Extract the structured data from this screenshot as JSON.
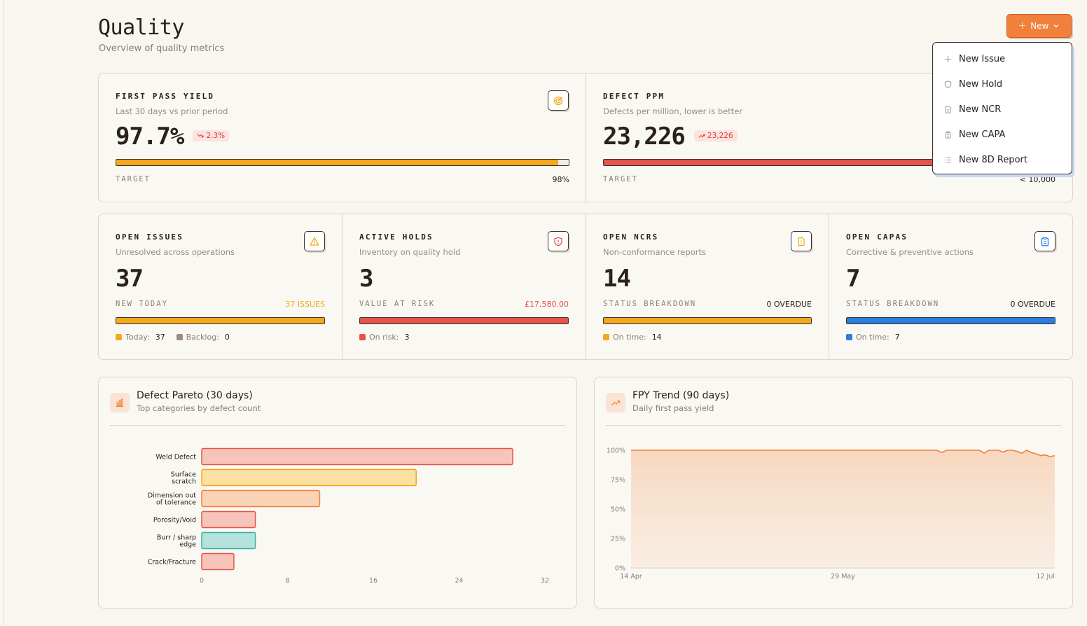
{
  "header": {
    "title": "Quality",
    "subtitle": "Overview of quality metrics",
    "new_button_label": "New"
  },
  "new_menu": {
    "items": [
      {
        "label": "New Issue",
        "icon": "plus-icon"
      },
      {
        "label": "New Hold",
        "icon": "shield-icon"
      },
      {
        "label": "New NCR",
        "icon": "file-icon"
      },
      {
        "label": "New CAPA",
        "icon": "clipboard-icon"
      },
      {
        "label": "New 8D Report",
        "icon": "list-icon"
      }
    ]
  },
  "fpy": {
    "label": "FIRST PASS YIELD",
    "description": "Last 30 days vs prior period",
    "value": "97.7%",
    "delta": "2.3%",
    "target_label": "TARGET",
    "target_value": "98%",
    "progress": 0.977,
    "color": "#f4a81d"
  },
  "ppm": {
    "label": "DEFECT PPM",
    "description": "Defects per million, lower is better",
    "value": "23,226",
    "delta": "23,226",
    "target_label": "TARGET",
    "target_value": "< 10,000",
    "progress": 1.0,
    "color": "#e5534b"
  },
  "issues": {
    "label": "OPEN ISSUES",
    "description": "Unresolved across operations",
    "value": "37",
    "sub_label": "NEW TODAY",
    "sub_value": "37 ISSUES",
    "sub_value_color": "#f4a81d",
    "color": "#f4a81d",
    "legend": [
      {
        "name": "Today:",
        "value": "37",
        "color": "#f4a81d"
      },
      {
        "name": "Backlog:",
        "value": "0",
        "color": "#9c8b82"
      }
    ]
  },
  "holds": {
    "label": "ACTIVE HOLDS",
    "description": "Inventory on quality hold",
    "value": "3",
    "sub_label": "VALUE AT RISK",
    "sub_value": "£17,580.00",
    "sub_value_color": "#e5534b",
    "color": "#e5534b",
    "legend": [
      {
        "name": "On risk:",
        "value": "3",
        "color": "#e5534b"
      }
    ]
  },
  "ncrs": {
    "label": "OPEN NCRS",
    "description": "Non-conformance reports",
    "value": "14",
    "sub_label": "STATUS BREAKDOWN",
    "sub_value": "0 OVERDUE",
    "sub_value_color": "#2a211c",
    "color": "#f4a81d",
    "legend": [
      {
        "name": "On time:",
        "value": "14",
        "color": "#f4a81d"
      }
    ]
  },
  "capas": {
    "label": "OPEN CAPAS",
    "description": "Corrective & preventive actions",
    "value": "7",
    "sub_label": "STATUS BREAKDOWN",
    "sub_value": "0 OVERDUE",
    "sub_value_color": "#2a211c",
    "color": "#2b7de0",
    "legend": [
      {
        "name": "On time:",
        "value": "7",
        "color": "#2b7de0"
      }
    ]
  },
  "pareto_card": {
    "title": "Defect Pareto (30 days)",
    "subtitle": "Top categories by defect count"
  },
  "trend_card": {
    "title": "FPY Trend (90 days)",
    "subtitle": "Daily first pass yield"
  },
  "chart_data": [
    {
      "type": "bar",
      "orientation": "horizontal",
      "categories": [
        [
          "Weld Defect"
        ],
        [
          "Surface",
          "scratch"
        ],
        [
          "Dimension out",
          "of tolerance"
        ],
        [
          "Porosity/Void"
        ],
        [
          "Burr / sharp",
          "edge"
        ],
        [
          "Crack/Fracture"
        ]
      ],
      "values": [
        29,
        20,
        11,
        5,
        5,
        3
      ],
      "fills": [
        "#f7c4bb",
        "#fbe0a4",
        "#fad3b6",
        "#f7c4bb",
        "#b5e3dc",
        "#f7c4bb"
      ],
      "strokes": [
        "#e5534b",
        "#f4a81d",
        "#f0803c",
        "#e5534b",
        "#2fb3a3",
        "#e5534b"
      ],
      "xticks": [
        "0",
        "8",
        "16",
        "24",
        "32"
      ],
      "xlim": [
        0,
        32
      ]
    },
    {
      "type": "area",
      "yticks": [
        "0%",
        "25%",
        "50%",
        "75%",
        "100%"
      ],
      "ylim": [
        0,
        100
      ],
      "xticks": [
        "14 Apr",
        "29 May",
        "12 Jul"
      ],
      "values": [
        100,
        100,
        100,
        100,
        100,
        100,
        100,
        100,
        100,
        100,
        100,
        100,
        100,
        100,
        100,
        100,
        100,
        100,
        100,
        100,
        100,
        100,
        100,
        100,
        100,
        100,
        100,
        100,
        100,
        100,
        100,
        100,
        100,
        100,
        100,
        100,
        100,
        100,
        100,
        100,
        100,
        100,
        100,
        100,
        100,
        100,
        100,
        100,
        100,
        100,
        100,
        100,
        100,
        100,
        100,
        100,
        100,
        100,
        100,
        100,
        100,
        100,
        100,
        100,
        100,
        100,
        98,
        100,
        100,
        100,
        100,
        100,
        100,
        100,
        100,
        97.5,
        100,
        100,
        100,
        98.5,
        100,
        100,
        99,
        97.5,
        100,
        98,
        97,
        95.5,
        96,
        94.5,
        95.5
      ],
      "line_color": "#f0803c"
    }
  ]
}
